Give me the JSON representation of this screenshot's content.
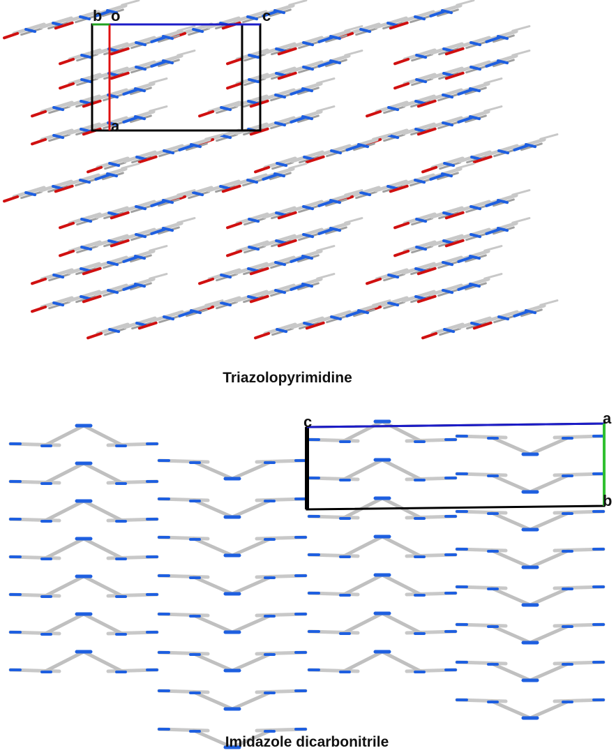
{
  "panels": [
    {
      "caption": "Triazolopyrimidine",
      "cell_labels": [
        "b",
        "o",
        "c",
        "a"
      ]
    },
    {
      "caption": "Imidazole dicarbonitrile",
      "cell_labels": [
        "c",
        "a",
        "b"
      ]
    }
  ]
}
